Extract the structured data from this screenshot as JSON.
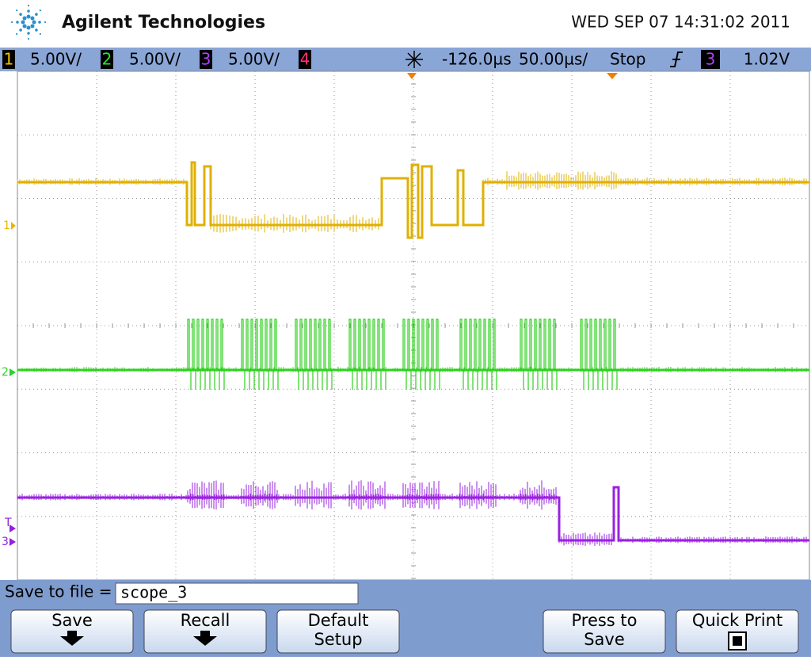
{
  "header": {
    "brand": "Agilent Technologies",
    "datetime": "WED SEP 07 14:31:02 2011"
  },
  "status_bar": {
    "channels": [
      {
        "number": "1",
        "scale": "5.00V/"
      },
      {
        "number": "2",
        "scale": "5.00V/"
      },
      {
        "number": "3",
        "scale": "5.00V/"
      },
      {
        "number": "4"
      }
    ],
    "time_offset": "-126.0µs",
    "time_scale": "50.00µs/",
    "run_state": "Stop",
    "trigger_source": "3",
    "trigger_level": "1.02V"
  },
  "markers": {
    "ch1": "1",
    "ch2": "2",
    "trigger": "T",
    "ch3": "3"
  },
  "softkeys": {
    "filename_label": "Save to file =",
    "filename": "scope_3",
    "buttons": [
      {
        "label": "Save"
      },
      {
        "label": "Recall"
      },
      {
        "label": [
          "Default",
          "Setup"
        ]
      },
      {
        "label": [
          "Press to",
          "Save"
        ]
      },
      {
        "label": "Quick Print"
      }
    ]
  }
}
